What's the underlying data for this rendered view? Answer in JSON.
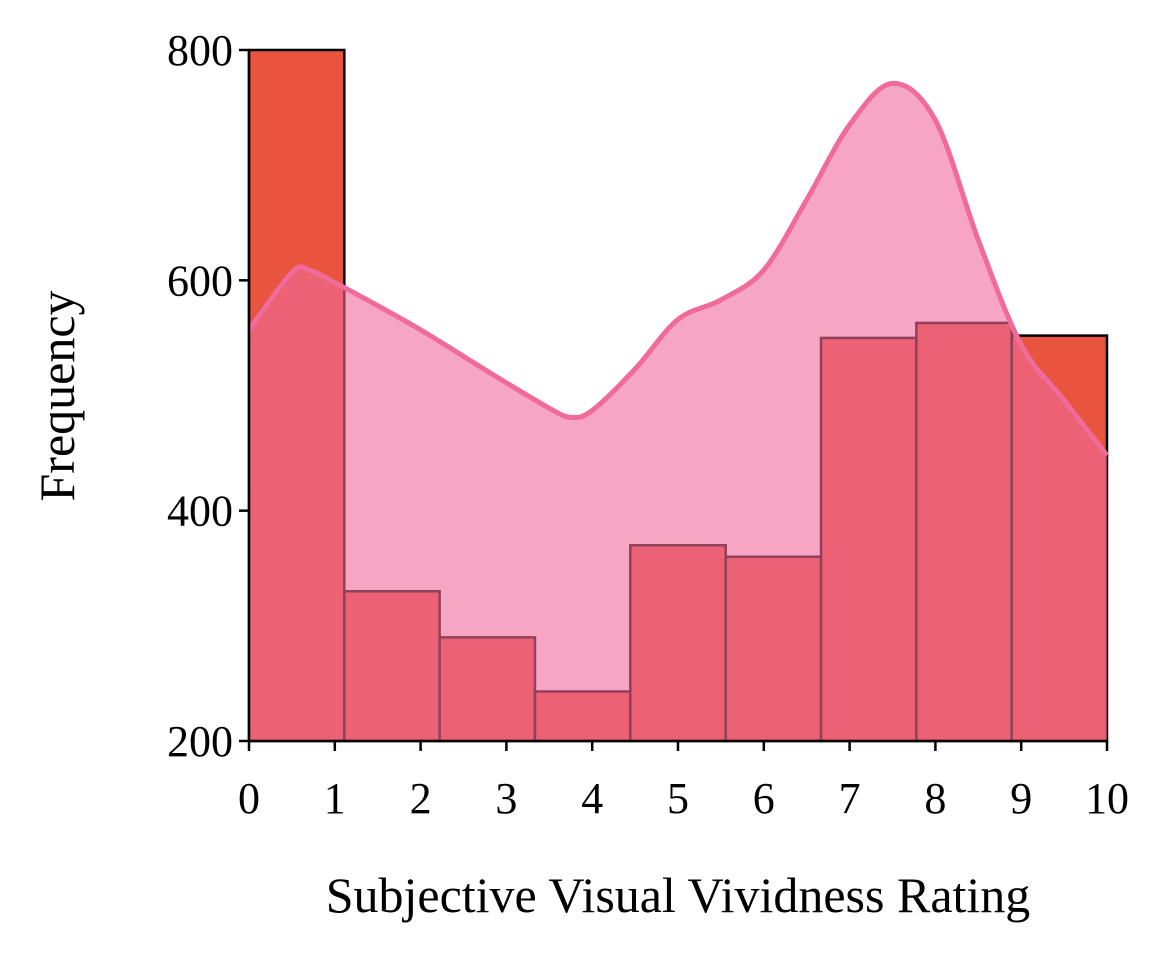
{
  "chart_data": {
    "type": "histogram",
    "xlabel": "Subjective Visual Vividness Rating",
    "ylabel": "Frequency",
    "bins": [
      0,
      1.111,
      2.222,
      3.333,
      4.444,
      5.556,
      6.667,
      7.778,
      8.889,
      10
    ],
    "values": [
      800,
      330,
      290,
      243,
      370,
      360,
      550,
      563,
      552
    ],
    "color": "#e9543f",
    "kde": {
      "color": "#f06a9a",
      "x": [
        0,
        0.5,
        0.7,
        1,
        1.5,
        2,
        2.5,
        3,
        3.5,
        3.75,
        4,
        4.5,
        5,
        5.5,
        6,
        6.5,
        7,
        7.5,
        8,
        8.5,
        9,
        9.5,
        10
      ],
      "y": [
        557,
        607,
        609,
        598,
        578,
        557,
        534,
        511,
        489,
        481,
        487,
        523,
        566,
        583,
        609,
        670,
        735,
        771,
        739,
        635,
        544,
        496,
        448
      ]
    },
    "xlim": [
      0,
      10
    ],
    "ylim": [
      200,
      800
    ],
    "xticks": [
      0,
      1,
      2,
      3,
      4,
      5,
      6,
      7,
      8,
      9,
      10
    ],
    "yticks": [
      200,
      400,
      600,
      800
    ]
  }
}
